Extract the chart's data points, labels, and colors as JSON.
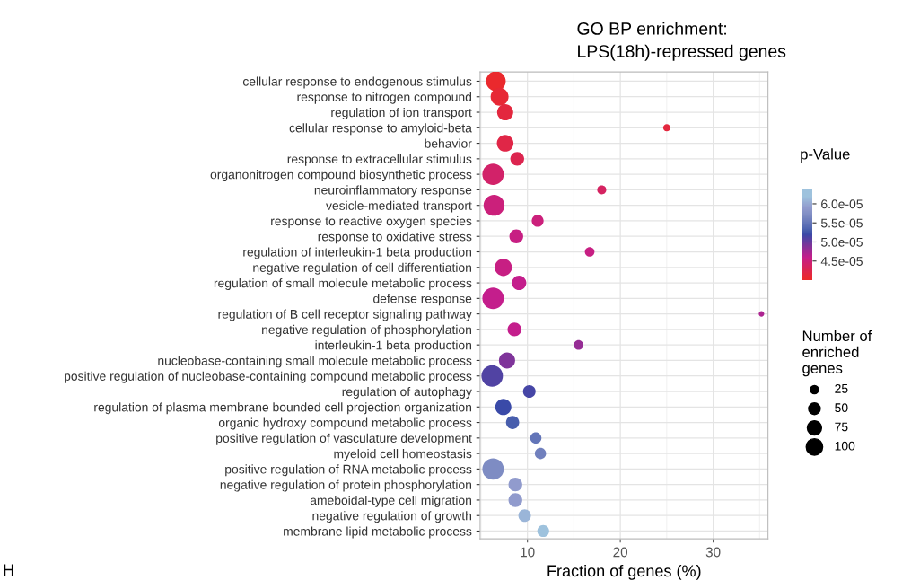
{
  "chart_data": {
    "type": "bubble",
    "title": "GO BP enrichment:\nLPS(18h)-repressed genes",
    "xlabel": "Fraction of genes (%)",
    "clabel": "p-Value",
    "legend_title": "Number of\nenriched\ngenes",
    "categories": [
      "cellular response to endogenous stimulus",
      "response to nitrogen compound",
      "regulation of ion transport",
      "cellular response to amyloid-beta",
      "behavior",
      "response to extracellular stimulus",
      "organonitrogen compound biosynthetic process",
      "neuroinflammatory response",
      "vesicle-mediated transport",
      "response to reactive oxygen species",
      "response to oxidative stress",
      "regulation of interleukin-1 beta production",
      "negative regulation of cell differentiation",
      "regulation of small molecule metabolic process",
      "defense response",
      "regulation of B cell receptor signaling pathway",
      "negative regulation of phosphorylation",
      "interleukin-1 beta production",
      "nucleobase-containing small molecule metabolic process",
      "positive regulation of nucleobase-containing compound metabolic process",
      "regulation of autophagy",
      "regulation of plasma membrane bounded cell projection organization",
      "organic hydroxy compound metabolic process",
      "positive regulation of vasculature development",
      "myeloid cell homeostasis",
      "positive regulation of RNA metabolic process",
      "negative regulation of protein phosphorylation",
      "ameboidal-type cell migration",
      "negative regulation of growth",
      "membrane lipid metabolic process"
    ],
    "orientation": "horizontal",
    "values": [
      6.6,
      7.0,
      7.6,
      25.0,
      7.6,
      8.9,
      6.3,
      18.0,
      6.4,
      11.1,
      8.8,
      16.7,
      7.4,
      9.1,
      6.3,
      35.2,
      8.6,
      15.5,
      7.8,
      6.2,
      10.2,
      7.4,
      8.4,
      10.9,
      11.4,
      6.3,
      8.7,
      8.7,
      9.7,
      11.7
    ],
    "sizes": [
      143,
      118,
      96,
      19,
      102,
      70,
      170,
      30,
      161,
      52,
      70,
      34,
      110,
      76,
      170,
      11,
      70,
      34,
      96,
      170,
      58,
      96,
      64,
      47,
      47,
      170,
      70,
      70,
      58,
      52
    ],
    "size_legend": [
      25,
      50,
      75,
      100
    ],
    "cvalues": [
      4.05e-05,
      4.1e-05,
      4.15e-05,
      4.15e-05,
      4.2e-05,
      4.25e-05,
      4.4e-05,
      4.35e-05,
      4.5e-05,
      4.5e-05,
      4.55e-05,
      4.55e-05,
      4.55e-05,
      4.6e-05,
      4.6e-05,
      4.7e-05,
      4.6e-05,
      4.8e-05,
      4.9e-05,
      5.1e-05,
      5.15e-05,
      5.2e-05,
      5.3e-05,
      5.5e-05,
      5.6e-05,
      5.7e-05,
      5.9e-05,
      5.9e-05,
      6.1e-05,
      6.2e-05
    ],
    "clim": [
      4e-05,
      6.4e-05
    ],
    "cticks": [
      {
        "value": 4.5e-05,
        "label": "4.5e-05"
      },
      {
        "value": 5e-05,
        "label": "5.0e-05"
      },
      {
        "value": 5.5e-05,
        "label": "5.5e-05"
      },
      {
        "value": 6e-05,
        "label": "6.0e-05"
      }
    ],
    "colors": [
      "#ea292d",
      "#e72835",
      "#e3273e",
      "#e3273e",
      "#e02647",
      "#dc254f",
      "#d22269",
      "#d52361",
      "#cb207b",
      "#cb207b",
      "#c71f83",
      "#c71f83",
      "#c71f83",
      "#c41e8c",
      "#c41e8c",
      "#ad2591",
      "#c41e8c",
      "#962d95",
      "#7f349a",
      "#5143a3",
      "#4646a6",
      "#3a4aa8",
      "#485ead",
      "#6375b8",
      "#7180bd",
      "#7e8cc3",
      "#919bcd",
      "#919bcd",
      "#9ab5d8",
      "#9ec2dd"
    ],
    "xlim": [
      4.9,
      35.9
    ],
    "xticks": [
      10,
      20,
      30
    ],
    "grid": true,
    "annotations": [
      "H"
    ]
  }
}
